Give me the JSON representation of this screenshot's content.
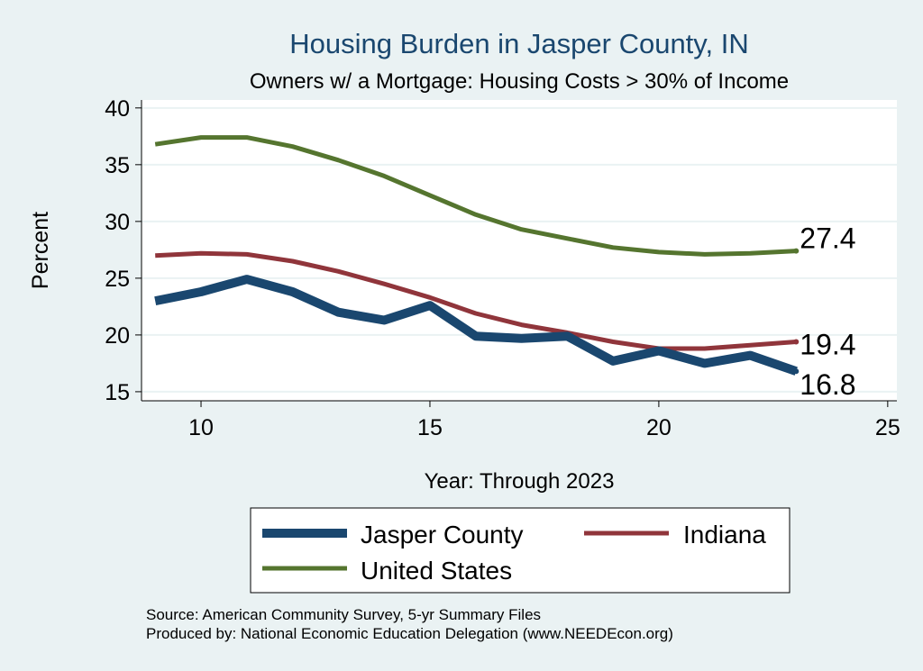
{
  "chart_data": {
    "type": "line",
    "title": "Housing Burden in Jasper County, IN",
    "subtitle": "Owners w/ a Mortgage: Housing Costs > 30% of Income",
    "xlabel": "Year: Through 2023",
    "ylabel": "Percent",
    "xlim": [
      8.7,
      25.2
    ],
    "ylim": [
      14.2,
      40.7
    ],
    "xticks": [
      10,
      15,
      20,
      25
    ],
    "yticks": [
      15,
      20,
      25,
      30,
      35,
      40
    ],
    "grid": true,
    "legend_position": "bottom",
    "x": [
      9,
      10,
      11,
      12,
      13,
      14,
      15,
      16,
      17,
      18,
      19,
      20,
      21,
      22,
      23
    ],
    "series": [
      {
        "name": "Jasper County",
        "color": "#1a476f",
        "values": [
          23.0,
          23.8,
          24.9,
          23.8,
          22.0,
          21.3,
          22.6,
          19.9,
          19.7,
          19.9,
          17.7,
          18.6,
          17.5,
          18.2,
          16.8
        ],
        "end_label": "16.8"
      },
      {
        "name": "Indiana",
        "color": "#90353b",
        "values": [
          27.0,
          27.2,
          27.1,
          26.5,
          25.6,
          24.5,
          23.3,
          21.9,
          20.9,
          20.2,
          19.4,
          18.8,
          18.8,
          19.1,
          19.4
        ],
        "end_label": "19.4"
      },
      {
        "name": "United States",
        "color": "#55752f",
        "values": [
          36.8,
          37.4,
          37.4,
          36.6,
          35.4,
          34.0,
          32.3,
          30.6,
          29.3,
          28.5,
          27.7,
          27.3,
          27.1,
          27.2,
          27.4
        ],
        "end_label": "27.4"
      }
    ],
    "source": [
      "Source: American Community Survey, 5-yr Summary Files",
      "Produced by: National Economic Education Delegation (www.NEEDEcon.org)"
    ]
  }
}
